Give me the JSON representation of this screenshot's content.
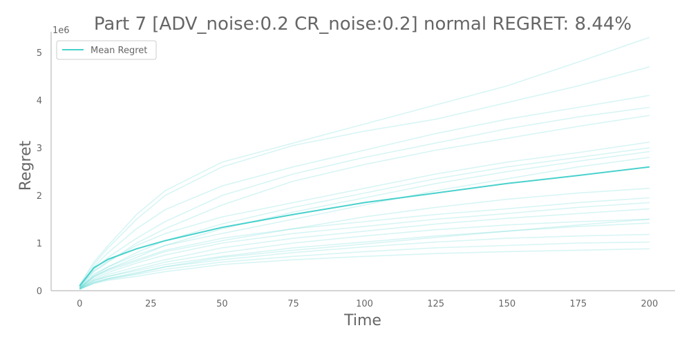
{
  "chart_data": {
    "type": "line",
    "title": "Part 7 [ADV_noise:0.2 CR_noise:0.2] normal REGRET: 8.44%",
    "xlabel": "Time",
    "ylabel": "Regret",
    "y_offset_label": "1e6",
    "xlim": [
      -10,
      209
    ],
    "ylim": [
      0,
      5.35
    ],
    "x_ticks": [
      0,
      25,
      50,
      75,
      100,
      125,
      150,
      175,
      200
    ],
    "y_ticks": [
      0,
      1,
      2,
      3,
      4,
      5
    ],
    "legend": {
      "position": "top-left",
      "entries": [
        "Mean Regret"
      ]
    },
    "grid": false,
    "colors": {
      "line": "#48d1cc",
      "text": "#666666",
      "axis": "#bbbbbb"
    },
    "x": [
      0,
      5,
      10,
      20,
      30,
      50,
      75,
      100,
      125,
      150,
      175,
      200
    ],
    "series": [
      {
        "name": "Mean Regret",
        "values": [
          0.1,
          0.48,
          0.66,
          0.88,
          1.05,
          1.33,
          1.6,
          1.85,
          2.05,
          2.25,
          2.42,
          2.6
        ]
      },
      {
        "values": [
          0.12,
          0.6,
          0.95,
          1.6,
          2.1,
          2.7,
          3.1,
          3.5,
          3.9,
          4.3,
          4.8,
          5.32
        ]
      },
      {
        "values": [
          0.1,
          0.55,
          0.9,
          1.5,
          2.0,
          2.6,
          3.05,
          3.35,
          3.6,
          3.95,
          4.3,
          4.7
        ]
      },
      {
        "values": [
          0.08,
          0.5,
          0.8,
          1.3,
          1.7,
          2.2,
          2.6,
          2.95,
          3.3,
          3.6,
          3.85,
          4.1
        ]
      },
      {
        "values": [
          0.09,
          0.45,
          0.7,
          1.1,
          1.45,
          2.0,
          2.45,
          2.8,
          3.1,
          3.4,
          3.65,
          3.85
        ]
      },
      {
        "values": [
          0.07,
          0.4,
          0.6,
          1.0,
          1.3,
          1.8,
          2.3,
          2.65,
          2.95,
          3.2,
          3.45,
          3.68
        ]
      },
      {
        "values": [
          0.08,
          0.42,
          0.62,
          0.95,
          1.2,
          1.55,
          1.85,
          2.15,
          2.45,
          2.7,
          2.9,
          3.12
        ]
      },
      {
        "values": [
          0.06,
          0.35,
          0.5,
          0.8,
          1.05,
          1.4,
          1.75,
          2.05,
          2.35,
          2.6,
          2.8,
          3.0
        ]
      },
      {
        "values": [
          0.05,
          0.3,
          0.45,
          0.7,
          0.95,
          1.3,
          1.65,
          1.95,
          2.25,
          2.5,
          2.72,
          2.92
        ]
      },
      {
        "values": [
          0.06,
          0.32,
          0.5,
          0.75,
          0.95,
          1.2,
          1.5,
          1.8,
          2.1,
          2.35,
          2.6,
          2.8
        ]
      },
      {
        "values": [
          0.05,
          0.28,
          0.42,
          0.62,
          0.82,
          1.05,
          1.3,
          1.55,
          1.75,
          1.92,
          2.05,
          2.15
        ]
      },
      {
        "values": [
          0.05,
          0.3,
          0.45,
          0.65,
          0.85,
          1.1,
          1.3,
          1.45,
          1.6,
          1.72,
          1.85,
          1.95
        ]
      },
      {
        "values": [
          0.05,
          0.25,
          0.38,
          0.58,
          0.75,
          1.0,
          1.2,
          1.35,
          1.5,
          1.62,
          1.75,
          1.85
        ]
      },
      {
        "values": [
          0.04,
          0.22,
          0.34,
          0.5,
          0.65,
          0.9,
          1.1,
          1.25,
          1.4,
          1.52,
          1.62,
          1.72
        ]
      },
      {
        "values": [
          0.04,
          0.2,
          0.3,
          0.45,
          0.6,
          0.8,
          1.0,
          1.15,
          1.28,
          1.38,
          1.45,
          1.5
        ]
      },
      {
        "values": [
          0.04,
          0.22,
          0.3,
          0.42,
          0.55,
          0.72,
          0.9,
          1.02,
          1.15,
          1.25,
          1.35,
          1.42
        ]
      },
      {
        "values": [
          0.03,
          0.18,
          0.26,
          0.38,
          0.5,
          0.65,
          0.8,
          0.92,
          1.02,
          1.1,
          1.15,
          1.18
        ]
      },
      {
        "values": [
          0.03,
          0.16,
          0.24,
          0.34,
          0.45,
          0.6,
          0.72,
          0.82,
          0.9,
          0.95,
          1.0,
          1.02
        ]
      },
      {
        "values": [
          0.03,
          0.15,
          0.22,
          0.3,
          0.4,
          0.55,
          0.65,
          0.72,
          0.78,
          0.82,
          0.85,
          0.88
        ]
      },
      {
        "values": [
          0.03,
          0.17,
          0.25,
          0.36,
          0.5,
          0.7,
          0.85,
          0.98,
          1.12,
          1.25,
          1.38,
          1.5
        ]
      }
    ]
  }
}
